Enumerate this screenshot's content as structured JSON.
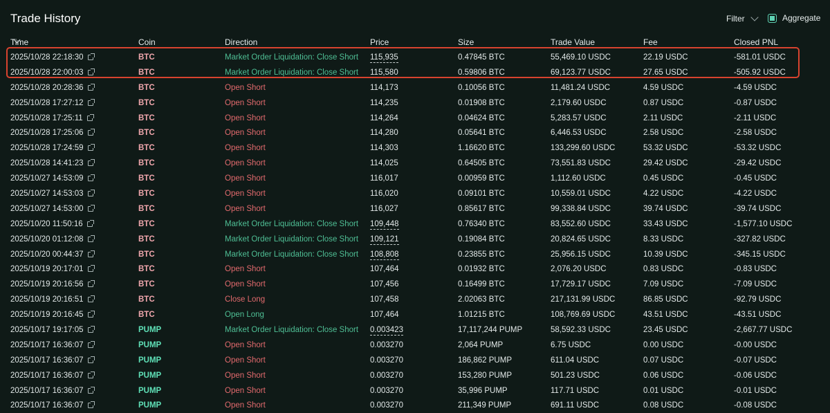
{
  "header": {
    "title": "Trade History",
    "filter_label": "Filter",
    "aggregate_label": "Aggregate",
    "aggregate_checked": true
  },
  "columns": {
    "time": "Time",
    "coin": "Coin",
    "direction": "Direction",
    "price": "Price",
    "size": "Size",
    "trade_value": "Trade Value",
    "fee": "Fee",
    "closed_pnl": "Closed PNL"
  },
  "colors": {
    "background": "#0f1a17",
    "green_direction": "#4fbf95",
    "red_direction": "#e26a6d",
    "btc_coin": "#f0a7ad",
    "pump_coin": "#5fe0b7",
    "highlight_border": "#d8432f"
  },
  "rows": [
    {
      "time": "2025/10/28 22:18:30",
      "coin": "BTC",
      "direction": "Market Order Liquidation: Close Short",
      "dir_color": "green",
      "price": "115,935",
      "price_dashed": true,
      "size": "0.47845 BTC",
      "value": "55,469.10 USDC",
      "fee": "22.19 USDC",
      "pnl": "-581.01 USDC"
    },
    {
      "time": "2025/10/28 22:00:03",
      "coin": "BTC",
      "direction": "Market Order Liquidation: Close Short",
      "dir_color": "green",
      "price": "115,580",
      "price_dashed": true,
      "size": "0.59806 BTC",
      "value": "69,123.77 USDC",
      "fee": "27.65 USDC",
      "pnl": "-505.92 USDC"
    },
    {
      "time": "2025/10/28 20:28:36",
      "coin": "BTC",
      "direction": "Open Short",
      "dir_color": "red",
      "price": "114,173",
      "price_dashed": false,
      "size": "0.10056 BTC",
      "value": "11,481.24 USDC",
      "fee": "4.59 USDC",
      "pnl": "-4.59 USDC"
    },
    {
      "time": "2025/10/28 17:27:12",
      "coin": "BTC",
      "direction": "Open Short",
      "dir_color": "red",
      "price": "114,235",
      "price_dashed": false,
      "size": "0.01908 BTC",
      "value": "2,179.60 USDC",
      "fee": "0.87 USDC",
      "pnl": "-0.87 USDC"
    },
    {
      "time": "2025/10/28 17:25:11",
      "coin": "BTC",
      "direction": "Open Short",
      "dir_color": "red",
      "price": "114,264",
      "price_dashed": false,
      "size": "0.04624 BTC",
      "value": "5,283.57 USDC",
      "fee": "2.11 USDC",
      "pnl": "-2.11 USDC"
    },
    {
      "time": "2025/10/28 17:25:06",
      "coin": "BTC",
      "direction": "Open Short",
      "dir_color": "red",
      "price": "114,280",
      "price_dashed": false,
      "size": "0.05641 BTC",
      "value": "6,446.53 USDC",
      "fee": "2.58 USDC",
      "pnl": "-2.58 USDC"
    },
    {
      "time": "2025/10/28 17:24:59",
      "coin": "BTC",
      "direction": "Open Short",
      "dir_color": "red",
      "price": "114,303",
      "price_dashed": false,
      "size": "1.16620 BTC",
      "value": "133,299.60 USDC",
      "fee": "53.32 USDC",
      "pnl": "-53.32 USDC"
    },
    {
      "time": "2025/10/28 14:41:23",
      "coin": "BTC",
      "direction": "Open Short",
      "dir_color": "red",
      "price": "114,025",
      "price_dashed": false,
      "size": "0.64505 BTC",
      "value": "73,551.83 USDC",
      "fee": "29.42 USDC",
      "pnl": "-29.42 USDC"
    },
    {
      "time": "2025/10/27 14:53:09",
      "coin": "BTC",
      "direction": "Open Short",
      "dir_color": "red",
      "price": "116,017",
      "price_dashed": false,
      "size": "0.00959 BTC",
      "value": "1,112.60 USDC",
      "fee": "0.45 USDC",
      "pnl": "-0.45 USDC"
    },
    {
      "time": "2025/10/27 14:53:03",
      "coin": "BTC",
      "direction": "Open Short",
      "dir_color": "red",
      "price": "116,020",
      "price_dashed": false,
      "size": "0.09101 BTC",
      "value": "10,559.01 USDC",
      "fee": "4.22 USDC",
      "pnl": "-4.22 USDC"
    },
    {
      "time": "2025/10/27 14:53:00",
      "coin": "BTC",
      "direction": "Open Short",
      "dir_color": "red",
      "price": "116,027",
      "price_dashed": false,
      "size": "0.85617 BTC",
      "value": "99,338.84 USDC",
      "fee": "39.74 USDC",
      "pnl": "-39.74 USDC"
    },
    {
      "time": "2025/10/20 11:50:16",
      "coin": "BTC",
      "direction": "Market Order Liquidation: Close Short",
      "dir_color": "green",
      "price": "109,448",
      "price_dashed": true,
      "size": "0.76340 BTC",
      "value": "83,552.60 USDC",
      "fee": "33.43 USDC",
      "pnl": "-1,577.10 USDC"
    },
    {
      "time": "2025/10/20 01:12:08",
      "coin": "BTC",
      "direction": "Market Order Liquidation: Close Short",
      "dir_color": "green",
      "price": "109,121",
      "price_dashed": true,
      "size": "0.19084 BTC",
      "value": "20,824.65 USDC",
      "fee": "8.33 USDC",
      "pnl": "-327.82 USDC"
    },
    {
      "time": "2025/10/20 00:44:37",
      "coin": "BTC",
      "direction": "Market Order Liquidation: Close Short",
      "dir_color": "green",
      "price": "108,808",
      "price_dashed": true,
      "size": "0.23855 BTC",
      "value": "25,956.15 USDC",
      "fee": "10.39 USDC",
      "pnl": "-345.15 USDC"
    },
    {
      "time": "2025/10/19 20:17:01",
      "coin": "BTC",
      "direction": "Open Short",
      "dir_color": "red",
      "price": "107,464",
      "price_dashed": false,
      "size": "0.01932 BTC",
      "value": "2,076.20 USDC",
      "fee": "0.83 USDC",
      "pnl": "-0.83 USDC"
    },
    {
      "time": "2025/10/19 20:16:56",
      "coin": "BTC",
      "direction": "Open Short",
      "dir_color": "red",
      "price": "107,456",
      "price_dashed": false,
      "size": "0.16499 BTC",
      "value": "17,729.17 USDC",
      "fee": "7.09 USDC",
      "pnl": "-7.09 USDC"
    },
    {
      "time": "2025/10/19 20:16:51",
      "coin": "BTC",
      "direction": "Close Long",
      "dir_color": "red",
      "price": "107,458",
      "price_dashed": false,
      "size": "2.02063 BTC",
      "value": "217,131.99 USDC",
      "fee": "86.85 USDC",
      "pnl": "-92.79 USDC"
    },
    {
      "time": "2025/10/19 20:16:45",
      "coin": "BTC",
      "direction": "Open Long",
      "dir_color": "green",
      "price": "107,464",
      "price_dashed": false,
      "size": "1.01215 BTC",
      "value": "108,769.69 USDC",
      "fee": "43.51 USDC",
      "pnl": "-43.51 USDC"
    },
    {
      "time": "2025/10/17 19:17:05",
      "coin": "PUMP",
      "direction": "Market Order Liquidation: Close Short",
      "dir_color": "green",
      "price": "0.003423",
      "price_dashed": true,
      "size": "17,117,244 PUMP",
      "value": "58,592.33 USDC",
      "fee": "23.45 USDC",
      "pnl": "-2,667.77 USDC"
    },
    {
      "time": "2025/10/17 16:36:07",
      "coin": "PUMP",
      "direction": "Open Short",
      "dir_color": "red",
      "price": "0.003270",
      "price_dashed": false,
      "size": "2,064 PUMP",
      "value": "6.75 USDC",
      "fee": "0.00 USDC",
      "pnl": "-0.00 USDC"
    },
    {
      "time": "2025/10/17 16:36:07",
      "coin": "PUMP",
      "direction": "Open Short",
      "dir_color": "red",
      "price": "0.003270",
      "price_dashed": false,
      "size": "186,862 PUMP",
      "value": "611.04 USDC",
      "fee": "0.07 USDC",
      "pnl": "-0.07 USDC"
    },
    {
      "time": "2025/10/17 16:36:07",
      "coin": "PUMP",
      "direction": "Open Short",
      "dir_color": "red",
      "price": "0.003270",
      "price_dashed": false,
      "size": "153,280 PUMP",
      "value": "501.23 USDC",
      "fee": "0.06 USDC",
      "pnl": "-0.06 USDC"
    },
    {
      "time": "2025/10/17 16:36:07",
      "coin": "PUMP",
      "direction": "Open Short",
      "dir_color": "red",
      "price": "0.003270",
      "price_dashed": false,
      "size": "35,996 PUMP",
      "value": "117.71 USDC",
      "fee": "0.01 USDC",
      "pnl": "-0.01 USDC"
    },
    {
      "time": "2025/10/17 16:36:07",
      "coin": "PUMP",
      "direction": "Open Short",
      "dir_color": "red",
      "price": "0.003270",
      "price_dashed": false,
      "size": "211,349 PUMP",
      "value": "691.11 USDC",
      "fee": "0.08 USDC",
      "pnl": "-0.08 USDC"
    }
  ]
}
